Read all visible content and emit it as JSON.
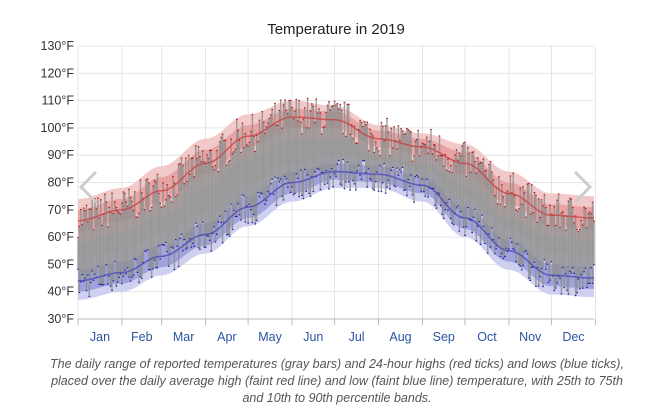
{
  "chart_data": {
    "type": "area",
    "title": "Temperature in 2019",
    "y_unit": "°F",
    "ylim": [
      30,
      130
    ],
    "yticks": [
      {
        "value": 30,
        "label": "30°F"
      },
      {
        "value": 40,
        "label": "40°F"
      },
      {
        "value": 50,
        "label": "50°F"
      },
      {
        "value": 60,
        "label": "60°F"
      },
      {
        "value": 70,
        "label": "70°F"
      },
      {
        "value": 80,
        "label": "80°F"
      },
      {
        "value": 90,
        "label": "90°F"
      },
      {
        "value": 100,
        "label": "100°F"
      },
      {
        "value": 110,
        "label": "110°F"
      },
      {
        "value": 120,
        "label": "120°F"
      },
      {
        "value": 130,
        "label": "130°F"
      }
    ],
    "months": [
      "Jan",
      "Feb",
      "Mar",
      "Apr",
      "May",
      "Jun",
      "Jul",
      "Aug",
      "Sep",
      "Oct",
      "Nov",
      "Dec"
    ],
    "grid": true,
    "day_of_year": [
      1,
      32,
      60,
      91,
      121,
      152,
      182,
      213,
      244,
      274,
      305,
      335,
      365
    ],
    "normal_high": [
      66,
      70,
      77,
      87,
      97,
      104,
      103,
      96,
      93,
      87,
      76,
      68,
      67
    ],
    "normal_low": [
      44,
      47,
      53,
      61,
      71,
      80,
      84,
      83,
      79,
      67,
      55,
      46,
      45
    ],
    "high_p10": [
      58,
      62,
      68,
      78,
      89,
      96,
      96,
      90,
      87,
      79,
      67,
      60,
      59
    ],
    "high_p25": [
      62,
      66,
      73,
      83,
      93,
      100,
      100,
      93,
      90,
      83,
      72,
      64,
      63
    ],
    "high_p75": [
      70,
      74,
      82,
      92,
      101,
      107,
      106,
      99,
      96,
      91,
      80,
      72,
      71
    ],
    "high_p90": [
      74,
      78,
      86,
      96,
      105,
      110,
      108,
      101,
      98,
      94,
      84,
      76,
      75
    ],
    "low_p10": [
      37,
      40,
      46,
      54,
      64,
      73,
      78,
      78,
      73,
      60,
      48,
      39,
      38
    ],
    "low_p25": [
      40,
      43,
      49,
      57,
      67,
      76,
      81,
      80,
      76,
      63,
      51,
      42,
      41
    ],
    "low_p75": [
      48,
      51,
      57,
      65,
      75,
      84,
      87,
      86,
      82,
      71,
      59,
      50,
      49
    ],
    "low_p90": [
      52,
      55,
      61,
      69,
      79,
      87,
      90,
      88,
      85,
      75,
      63,
      54,
      53
    ]
  },
  "caption": "The daily range of reported temperatures (gray bars) and 24-hour highs (red ticks) and lows (blue ticks), placed over the daily average high (faint red line) and low (faint blue line) temperature, with 25th to 75th and 10th to 90th percentile bands.",
  "colors": {
    "high_band_outer": "#f2c9c9",
    "high_band_inner": "#e8a3a3",
    "low_band_outer": "#cfd0ef",
    "low_band_inner": "#9fa2dc",
    "normal_high_line": "#c74444",
    "normal_low_line": "#4a4ab8",
    "daily_bar": "#8f8f8f",
    "high_tick": "#b02020",
    "low_tick": "#2020a0",
    "middle_fill": "#c8c8c8",
    "grid": "#e4e4e4",
    "nav_arrow": "#cccccc"
  },
  "nav": {
    "prev_icon": "chevron-left-icon",
    "next_icon": "chevron-right-icon"
  }
}
